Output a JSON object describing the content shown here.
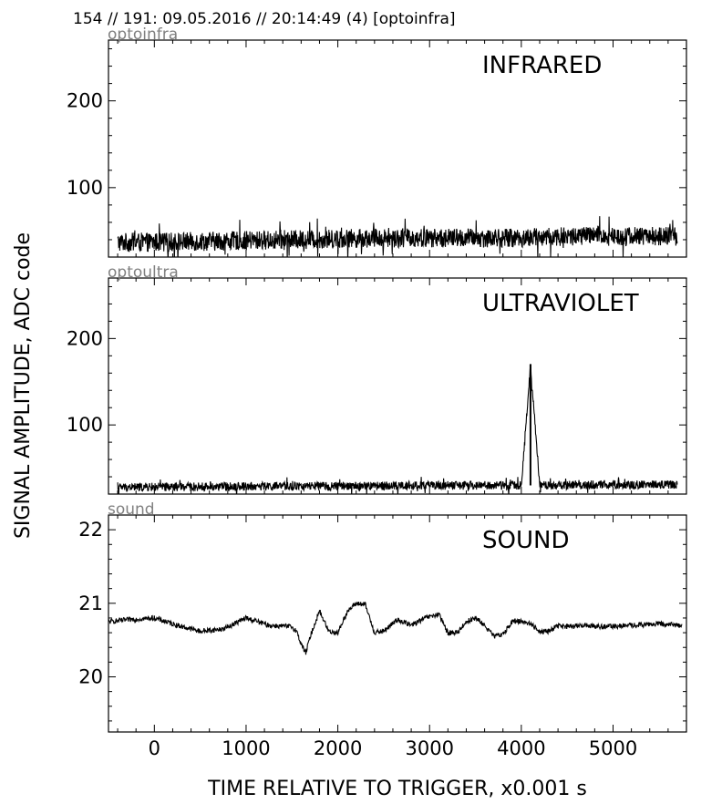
{
  "header": "154 // 191:   09.05.2016 // 20:14:49 (4)  [optoinfra]",
  "ylabel": "SIGNAL AMPLITUDE,  ADC code",
  "xlabel": "TIME RELATIVE TO TRIGGER,   x0.001 s",
  "colors": {
    "trace": "#000000",
    "corner_label": "#808080",
    "frame": "#000000",
    "background": "#ffffff"
  },
  "chart_data": [
    {
      "type": "line",
      "channel": "optoinfra",
      "title": "INFRARED",
      "xlim": [
        -500,
        5800
      ],
      "ylim": [
        20,
        270
      ],
      "xticks": [
        0,
        1000,
        2000,
        3000,
        4000,
        5000
      ],
      "yticks": [
        100,
        200
      ],
      "x_tick_labels_shown": false,
      "series": [
        {
          "x": [
            -400,
            0,
            1000,
            2000,
            2400,
            3000,
            4000,
            4600,
            4800,
            5000,
            5700
          ],
          "y": [
            37,
            37,
            39,
            41,
            42,
            42,
            42,
            44,
            45,
            44,
            44
          ]
        }
      ]
    },
    {
      "type": "line",
      "channel": "optoultra",
      "title": "ULTRAVIOLET",
      "xlim": [
        -500,
        5800
      ],
      "ylim": [
        20,
        270
      ],
      "xticks": [
        0,
        1000,
        2000,
        3000,
        4000,
        5000
      ],
      "yticks": [
        100,
        200
      ],
      "x_tick_labels_shown": false,
      "series": [
        {
          "x": [
            -400,
            0,
            1000,
            2000,
            3000,
            4000,
            4100,
            4200,
            5000,
            5700
          ],
          "y": [
            28,
            28,
            29,
            29,
            30,
            30,
            170,
            30,
            31,
            31
          ]
        }
      ]
    },
    {
      "type": "line",
      "channel": "sound",
      "title": "SOUND",
      "xlim": [
        -500,
        5800
      ],
      "ylim": [
        19.25,
        22.2
      ],
      "xticks": [
        0,
        1000,
        2000,
        3000,
        4000,
        5000
      ],
      "yticks": [
        20,
        21,
        22
      ],
      "x_tick_labels_shown": true,
      "series": [
        {
          "x": [
            -500,
            -250,
            0,
            250,
            500,
            750,
            1000,
            1250,
            1500,
            1550,
            1600,
            1650,
            1700,
            1800,
            1900,
            2000,
            2100,
            2200,
            2300,
            2400,
            2500,
            2650,
            2800,
            2950,
            3100,
            3200,
            3300,
            3400,
            3500,
            3600,
            3700,
            3800,
            3900,
            4000,
            4100,
            4200,
            4300,
            4400,
            4500,
            4700,
            4900,
            5200,
            5500,
            5750
          ],
          "y": [
            20.75,
            20.78,
            20.8,
            20.7,
            20.62,
            20.65,
            20.8,
            20.7,
            20.68,
            20.62,
            20.45,
            20.32,
            20.55,
            20.9,
            20.62,
            20.6,
            20.88,
            21.0,
            20.98,
            20.6,
            20.62,
            20.78,
            20.7,
            20.8,
            20.85,
            20.6,
            20.6,
            20.75,
            20.8,
            20.7,
            20.55,
            20.58,
            20.75,
            20.76,
            20.72,
            20.62,
            20.62,
            20.7,
            20.68,
            20.7,
            20.68,
            20.7,
            20.72,
            20.7
          ]
        }
      ]
    }
  ]
}
